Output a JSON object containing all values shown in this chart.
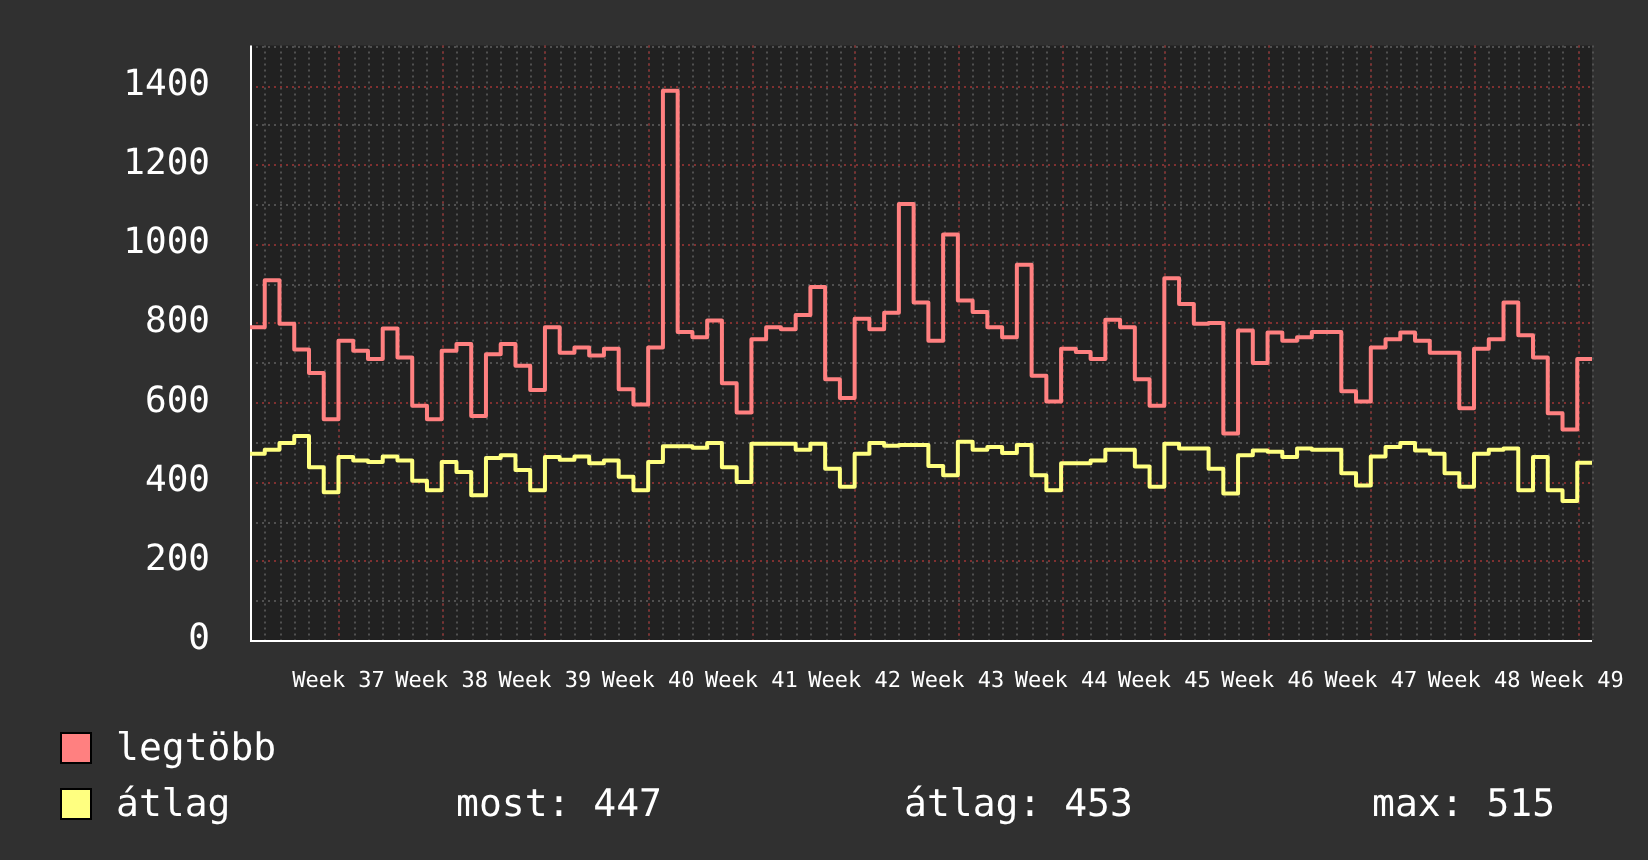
{
  "chart_data": {
    "type": "step",
    "categories": [
      null,
      null,
      null,
      null,
      null,
      null,
      "Week 37",
      null,
      null,
      null,
      null,
      null,
      null,
      "Week 38",
      null,
      null,
      null,
      null,
      null,
      null,
      "Week 39",
      null,
      null,
      null,
      null,
      null,
      null,
      "Week 40",
      null,
      null,
      null,
      null,
      null,
      null,
      "Week 41",
      null,
      null,
      null,
      null,
      null,
      null,
      "Week 42",
      null,
      null,
      null,
      null,
      null,
      null,
      "Week 43",
      null,
      null,
      null,
      null,
      null,
      null,
      "Week 44",
      null,
      null,
      null,
      null,
      null,
      null,
      "Week 45",
      null,
      null,
      null,
      null,
      null,
      null,
      "Week 46",
      null,
      null,
      null,
      null,
      null,
      null,
      "Week 47",
      null,
      null,
      null,
      null,
      null,
      null,
      "Week 48",
      null,
      null,
      null,
      null,
      null,
      null,
      "Week 49",
      null
    ],
    "series": [
      {
        "name": "legtöbb",
        "color": "#ff8080",
        "values": [
          789,
          908,
          798,
          733,
          674,
          557,
          755,
          730,
          709,
          786,
          713,
          591,
          557,
          730,
          747,
          565,
          721,
          747,
          692,
          631,
          789,
          725,
          738,
          718,
          735,
          633,
          594,
          738,
          1386,
          777,
          764,
          806,
          648,
          574,
          759,
          789,
          784,
          820,
          891,
          658,
          611,
          811,
          784,
          826,
          1100,
          852,
          755,
          1023,
          857,
          828,
          789,
          764,
          947,
          667,
          602,
          735,
          727,
          709,
          808,
          789,
          658,
          591,
          913,
          848,
          798,
          800,
          521,
          781,
          699,
          776,
          755,
          764,
          777,
          777,
          628,
          602,
          738,
          759,
          776,
          755,
          725,
          725,
          585,
          735,
          759,
          852,
          769,
          713,
          572,
          531,
          709,
          709
        ]
      },
      {
        "name": "átlag",
        "color": "#ffff80",
        "values": [
          470,
          480,
          497,
          515,
          436,
          373,
          462,
          453,
          449,
          463,
          453,
          402,
          378,
          449,
          424,
          365,
          459,
          466,
          429,
          378,
          462,
          455,
          463,
          446,
          453,
          412,
          378,
          449,
          489,
          489,
          485,
          497,
          436,
          399,
          495,
          495,
          495,
          480,
          495,
          432,
          387,
          470,
          497,
          490,
          492,
          492,
          439,
          416,
          500,
          480,
          487,
          472,
          492,
          416,
          378,
          446,
          446,
          453,
          480,
          480,
          438,
          387,
          495,
          483,
          483,
          432,
          370,
          466,
          478,
          475,
          462,
          483,
          480,
          480,
          421,
          390,
          463,
          487,
          497,
          478,
          470,
          421,
          387,
          470,
          480,
          483,
          378,
          462,
          378,
          351,
          447,
          447
        ]
      }
    ],
    "ylim": [
      0,
      1500
    ],
    "yticks": [
      0,
      200,
      400,
      600,
      800,
      1000,
      1200,
      1400
    ],
    "grid": true,
    "legend": "bottom",
    "marker": "none",
    "line_style": "solid",
    "annotations": [
      "most: 447",
      "átlag: 453",
      "max: 515"
    ]
  }
}
